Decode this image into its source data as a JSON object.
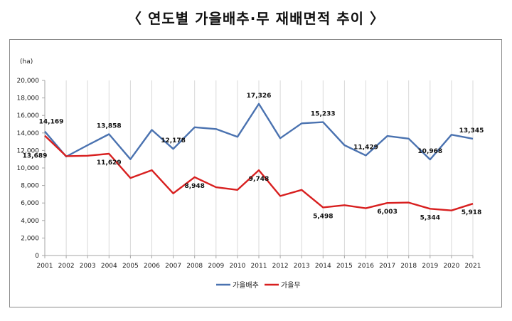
{
  "title": "〈 연도별 가을배추·무 재배면적 추이 〉",
  "chart_data": {
    "type": "line",
    "title": "연도별 가을배추·무 재배면적 추이",
    "ylabel": "(ha)",
    "xlabel": "",
    "ylim": [
      0,
      20000
    ],
    "yticks": [
      0,
      2000,
      4000,
      6000,
      8000,
      10000,
      12000,
      14000,
      16000,
      18000,
      20000
    ],
    "ytick_labels": [
      "0",
      "2,000",
      "4,000",
      "6,000",
      "8,000",
      "10,000",
      "12,000",
      "14,000",
      "16,000",
      "18,000",
      "20,000"
    ],
    "grid": "vertical",
    "legend_position": "bottom",
    "categories": [
      "2001",
      "2002",
      "2003",
      "2004",
      "2005",
      "2006",
      "2007",
      "2008",
      "2009",
      "2010",
      "2011",
      "2012",
      "2013",
      "2014",
      "2015",
      "2016",
      "2017",
      "2018",
      "2019",
      "2020",
      "2021"
    ],
    "series": [
      {
        "name": "가을배추",
        "color": "#4a72b0",
        "values": [
          14169,
          11300,
          12600,
          13858,
          11000,
          14350,
          12178,
          14650,
          14450,
          13550,
          17326,
          13400,
          15100,
          15233,
          12600,
          11429,
          13650,
          13350,
          10968,
          13800,
          13345
        ],
        "labels": [
          {
            "index": 0,
            "text": "14,169",
            "pos": "above"
          },
          {
            "index": 3,
            "text": "13,858",
            "pos": "above"
          },
          {
            "index": 6,
            "text": "12,178",
            "pos": "above"
          },
          {
            "index": 10,
            "text": "17,326",
            "pos": "above"
          },
          {
            "index": 13,
            "text": "15,233",
            "pos": "above"
          },
          {
            "index": 15,
            "text": "11,429",
            "pos": "above"
          },
          {
            "index": 18,
            "text": "10,968",
            "pos": "above"
          },
          {
            "index": 20,
            "text": "13,345",
            "pos": "above"
          }
        ]
      },
      {
        "name": "가을무",
        "color": "#d81f1f",
        "values": [
          13689,
          11350,
          11400,
          11629,
          8850,
          9750,
          7100,
          8948,
          7800,
          7500,
          9748,
          6800,
          7500,
          5498,
          5750,
          5400,
          6003,
          6050,
          5344,
          5150,
          5918
        ],
        "labels": [
          {
            "index": 0,
            "text": "13,689",
            "pos": "below"
          },
          {
            "index": 3,
            "text": "11,629",
            "pos": "below"
          },
          {
            "index": 7,
            "text": "8,948",
            "pos": "below"
          },
          {
            "index": 10,
            "text": "9,748",
            "pos": "below"
          },
          {
            "index": 13,
            "text": "5,498",
            "pos": "below"
          },
          {
            "index": 16,
            "text": "6,003",
            "pos": "below"
          },
          {
            "index": 18,
            "text": "5,344",
            "pos": "below"
          },
          {
            "index": 20,
            "text": "5,918",
            "pos": "below"
          }
        ]
      }
    ]
  }
}
